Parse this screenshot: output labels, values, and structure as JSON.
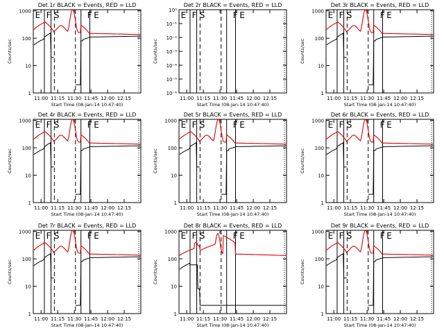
{
  "figure": {
    "background": "#ffffff",
    "line_color": "#000000",
    "events_color": "#000000",
    "lld_color": "#e00000"
  },
  "chart_data": [
    {
      "type": "line",
      "title": "Det 1r BLACK = Events, RED = LLD",
      "xlabel": "Start Time (08-Jan-14 10:47:40)",
      "ylabel": "Counts/sec",
      "xticks": [
        "11:00",
        "11:15",
        "11:30",
        "11:45",
        "12:00",
        "12:15"
      ],
      "yticks": [
        "1",
        "10",
        "100",
        "1000"
      ],
      "log_y": true,
      "ylim": [
        1,
        1100
      ],
      "xlim_min": [
        -7,
        90
      ],
      "markers": [
        {
          "label": "E",
          "t": -6
        },
        {
          "label": "F",
          "t": 4
        },
        {
          "label": "S",
          "t": 11
        },
        {
          "label": "F",
          "t": 41
        },
        {
          "label": "E",
          "t": 47
        }
      ],
      "solid_lines": [
        3,
        9,
        36,
        44
      ],
      "dashed_lines": [
        12,
        31
      ],
      "profile": 1
    },
    {
      "type": "line",
      "title": "Det 2r BLACK = Events, RED = LLD",
      "xlabel": "Start Time (08-Jan-14 10:47:40)",
      "ylabel": "Counts/sec",
      "xticks": [
        "11:00",
        "11:15",
        "11:30",
        "11:45",
        "12:00",
        "12:15"
      ],
      "yticks": [
        "10⁻⁶",
        "10⁻⁵",
        "10⁻⁴",
        "10⁻³",
        "10⁻²",
        "10⁻¹",
        "10⁰"
      ],
      "log_y": true,
      "ylim": [
        1e-06,
        1
      ],
      "xlim_min": [
        -7,
        90
      ],
      "markers": [
        {
          "label": "E",
          "t": -6
        },
        {
          "label": "F",
          "t": 4
        },
        {
          "label": "S",
          "t": 11
        },
        {
          "label": "F",
          "t": 41
        },
        {
          "label": "E",
          "t": 47
        }
      ],
      "solid_lines": [
        3,
        9,
        36,
        44
      ],
      "dashed_lines": [
        12,
        31
      ],
      "profile": 0
    },
    {
      "type": "line",
      "title": "Det 3r BLACK = Events, RED = LLD",
      "xlabel": "Start Time (08-Jan-14 10:47:40)",
      "ylabel": "Counts/sec",
      "xticks": [
        "11:00",
        "11:15",
        "11:30",
        "11:45",
        "12:00",
        "12:15"
      ],
      "yticks": [
        "1",
        "10",
        "100",
        "1000"
      ],
      "log_y": true,
      "ylim": [
        1,
        1100
      ],
      "xlim_min": [
        -7,
        90
      ],
      "markers": [
        {
          "label": "E",
          "t": -6
        },
        {
          "label": "F",
          "t": 4
        },
        {
          "label": "S",
          "t": 11
        },
        {
          "label": "F",
          "t": 41
        },
        {
          "label": "E",
          "t": 47
        }
      ],
      "solid_lines": [
        3,
        9,
        36,
        44
      ],
      "dashed_lines": [
        12,
        31
      ],
      "profile": 1
    },
    {
      "type": "line",
      "title": "Det 4r BLACK = Events, RED = LLD",
      "xlabel": "Start Time (08-Jan-14 10:47:40)",
      "ylabel": "Counts/sec",
      "xticks": [
        "11:00",
        "11:15",
        "11:30",
        "11:45",
        "12:00",
        "12:15"
      ],
      "yticks": [
        "1",
        "10",
        "100",
        "1000"
      ],
      "log_y": true,
      "ylim": [
        1,
        1100
      ],
      "xlim_min": [
        -7,
        90
      ],
      "markers": [
        {
          "label": "E",
          "t": -6
        },
        {
          "label": "F",
          "t": 4
        },
        {
          "label": "S",
          "t": 11
        },
        {
          "label": "F",
          "t": 41
        },
        {
          "label": "E",
          "t": 47
        }
      ],
      "solid_lines": [
        3,
        9,
        36,
        44
      ],
      "dashed_lines": [
        12,
        31
      ],
      "profile": 1
    },
    {
      "type": "line",
      "title": "Det 5r BLACK = Events, RED = LLD",
      "xlabel": "Start Time (08-Jan-14 10:47:40)",
      "ylabel": "Counts/sec",
      "xticks": [
        "11:00",
        "11:15",
        "11:30",
        "11:45",
        "12:00",
        "12:15"
      ],
      "yticks": [
        "1",
        "10",
        "100",
        "1000"
      ],
      "log_y": true,
      "ylim": [
        1,
        1100
      ],
      "xlim_min": [
        -7,
        90
      ],
      "markers": [
        {
          "label": "E",
          "t": -6
        },
        {
          "label": "F",
          "t": 4
        },
        {
          "label": "S",
          "t": 11
        },
        {
          "label": "F",
          "t": 41
        },
        {
          "label": "E",
          "t": 47
        }
      ],
      "solid_lines": [
        3,
        9,
        36,
        44
      ],
      "dashed_lines": [
        12,
        31
      ],
      "profile": 1
    },
    {
      "type": "line",
      "title": "Det 6r BLACK = Events, RED = LLD",
      "xlabel": "Start Time (08-Jan-14 10:47:40)",
      "ylabel": "Counts/sec",
      "xticks": [
        "11:00",
        "11:15",
        "11:30",
        "11:45",
        "12:00",
        "12:15"
      ],
      "yticks": [
        "1",
        "10",
        "100",
        "1000"
      ],
      "log_y": true,
      "ylim": [
        1,
        1100
      ],
      "xlim_min": [
        -7,
        90
      ],
      "markers": [
        {
          "label": "E",
          "t": -6
        },
        {
          "label": "F",
          "t": 4
        },
        {
          "label": "S",
          "t": 11
        },
        {
          "label": "F",
          "t": 41
        },
        {
          "label": "E",
          "t": 47
        }
      ],
      "solid_lines": [
        3,
        9,
        36,
        44
      ],
      "dashed_lines": [
        12,
        31
      ],
      "profile": 1
    },
    {
      "type": "line",
      "title": "Det 7r BLACK = Events, RED = LLD",
      "xlabel": "Start Time (08-Jan-14 10:47:40)",
      "ylabel": "Counts/sec",
      "xticks": [
        "11:00",
        "11:15",
        "11:30",
        "11:45",
        "12:00",
        "12:15"
      ],
      "yticks": [
        "1",
        "10",
        "100",
        "1000"
      ],
      "log_y": true,
      "ylim": [
        1,
        1100
      ],
      "xlim_min": [
        -7,
        90
      ],
      "markers": [
        {
          "label": "E",
          "t": -6
        },
        {
          "label": "F",
          "t": 4
        },
        {
          "label": "S",
          "t": 11
        },
        {
          "label": "F",
          "t": 41
        },
        {
          "label": "E",
          "t": 47
        }
      ],
      "solid_lines": [
        3,
        9,
        36,
        44
      ],
      "dashed_lines": [
        12,
        31
      ],
      "profile": 1
    },
    {
      "type": "line",
      "title": "Det 8r BLACK = Events, RED = LLD",
      "xlabel": "Start Time (08-Jan-14 10:47:40)",
      "ylabel": "Counts/sec",
      "xticks": [
        "11:00",
        "11:15",
        "11:30",
        "11:45",
        "12:00",
        "12:15"
      ],
      "yticks": [
        "1",
        "10",
        "100",
        "1000"
      ],
      "log_y": true,
      "ylim": [
        1,
        1100
      ],
      "xlim_min": [
        -7,
        90
      ],
      "markers": [
        {
          "label": "E",
          "t": -6
        },
        {
          "label": "F",
          "t": 4
        },
        {
          "label": "S",
          "t": 11
        },
        {
          "label": "F",
          "t": 41
        },
        {
          "label": "E",
          "t": 47
        }
      ],
      "solid_lines": [
        3,
        9,
        36,
        44
      ],
      "dashed_lines": [
        12,
        31
      ],
      "profile": 2
    },
    {
      "type": "line",
      "title": "Det 9r BLACK = Events, RED = LLD",
      "xlabel": "Start Time (08-Jan-14 10:47:40)",
      "ylabel": "Counts/sec",
      "xticks": [
        "11:00",
        "11:15",
        "11:30",
        "11:45",
        "12:00",
        "12:15"
      ],
      "yticks": [
        "1",
        "10",
        "100",
        "1000"
      ],
      "log_y": true,
      "ylim": [
        1,
        1100
      ],
      "xlim_min": [
        -7,
        90
      ],
      "markers": [
        {
          "label": "E",
          "t": -6
        },
        {
          "label": "F",
          "t": 4
        },
        {
          "label": "S",
          "t": 11
        },
        {
          "label": "F",
          "t": 41
        },
        {
          "label": "E",
          "t": 47
        }
      ],
      "solid_lines": [
        3,
        9,
        36,
        44
      ],
      "dashed_lines": [
        12,
        31
      ],
      "profile": 1
    }
  ]
}
